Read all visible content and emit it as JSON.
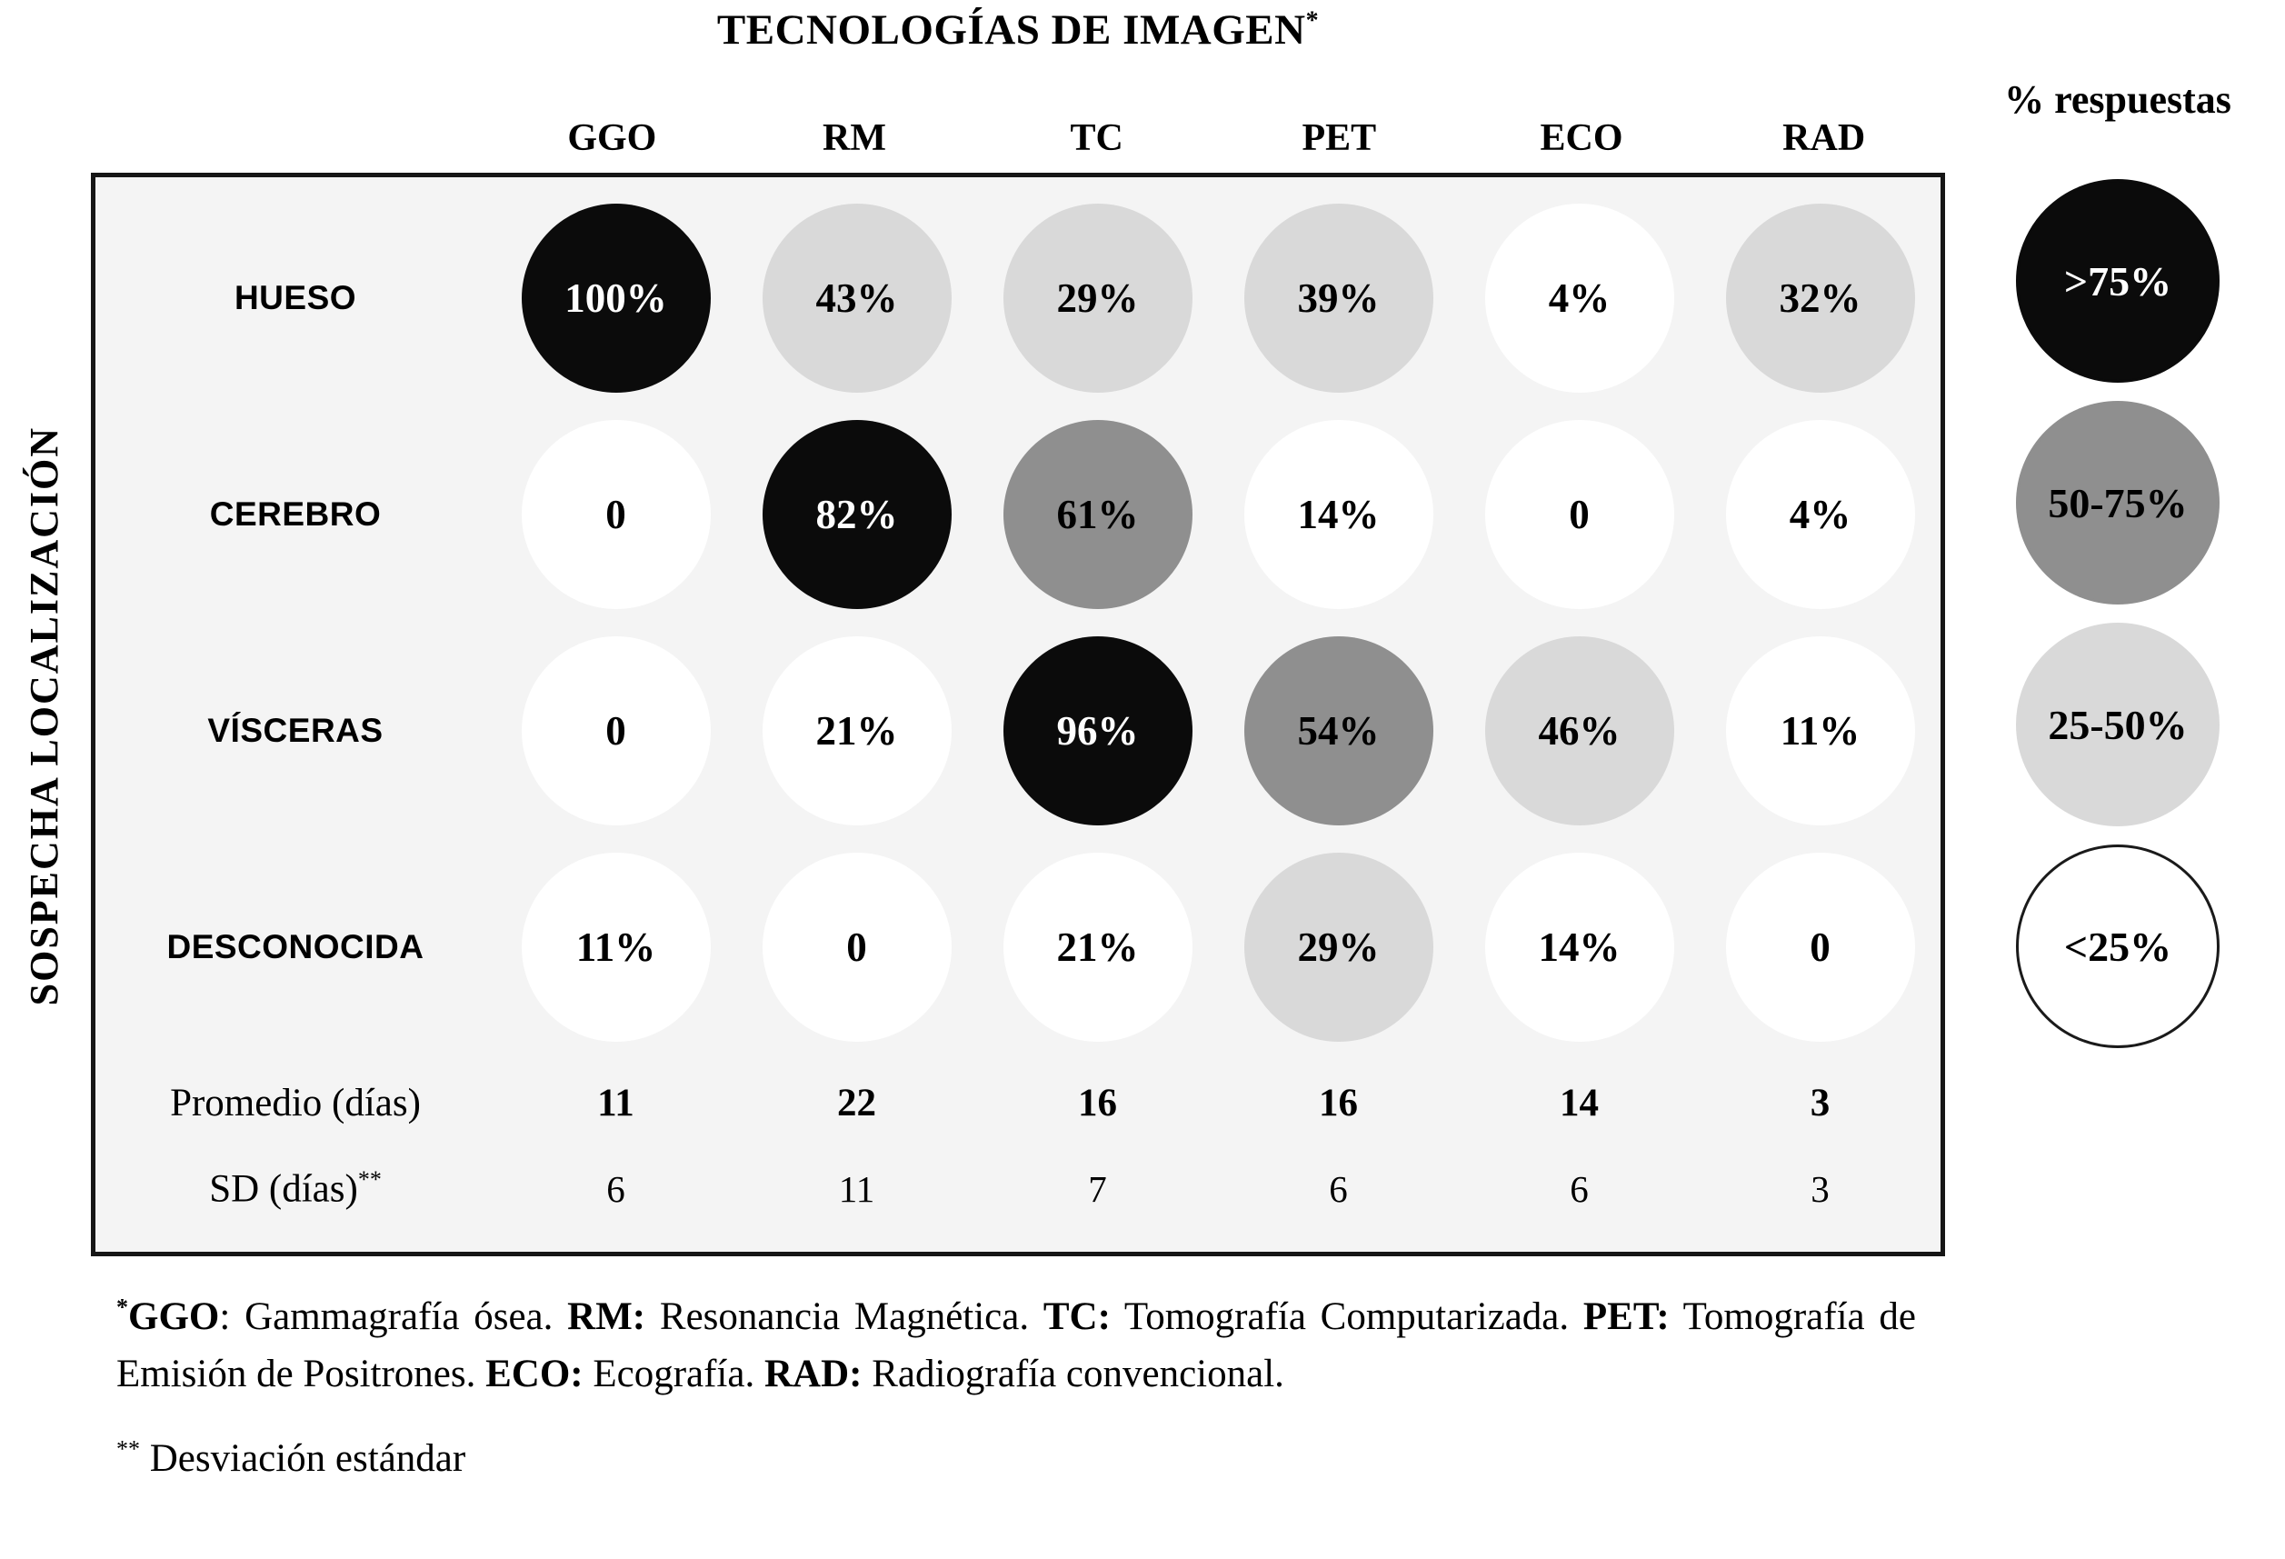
{
  "title": "TECNOLOGÍAS DE IMAGEN",
  "title_sup": "*",
  "y_axis_label": "SOSPECHA LOCALIZACIÓN",
  "legend": {
    "title": "% respuestas",
    "items": [
      {
        "label": ">75%",
        "bin": "gt75"
      },
      {
        "label": "50-75%",
        "bin": "b50_75"
      },
      {
        "label": "25-50%",
        "bin": "b25_50"
      },
      {
        "label": "<25%",
        "bin": "lt25"
      }
    ],
    "outline_color": "#1a1a1a"
  },
  "bins": {
    "gt75": {
      "range": ">75%",
      "fill": "#0b0b0b",
      "text_color": "#ffffff"
    },
    "b50_75": {
      "range": "50-75%",
      "fill": "#8f8f8f",
      "text_color": "#000000"
    },
    "b25_50": {
      "range": "25-50%",
      "fill": "#d9d9d9",
      "text_color": "#000000"
    },
    "lt25": {
      "range": "<25%",
      "fill": "#ffffff",
      "text_color": "#000000"
    }
  },
  "panel_background": "#f4f4f4",
  "border_color": "#161616",
  "chart_data": {
    "type": "heatmap",
    "title": "TECNOLOGÍAS DE IMAGEN*",
    "x_group_label": "TECNOLOGÍAS DE IMAGEN",
    "y_group_label": "SOSPECHA LOCALIZACIÓN",
    "legend_title": "% respuestas",
    "legend_bins": [
      ">75%",
      "50-75%",
      "25-50%",
      "<25%"
    ],
    "columns": [
      "GGO",
      "RM",
      "TC",
      "PET",
      "ECO",
      "RAD"
    ],
    "rows": [
      {
        "label": "HUESO",
        "cells": [
          {
            "text": "100%",
            "value": 100,
            "bin": "gt75"
          },
          {
            "text": "43%",
            "value": 43,
            "bin": "b25_50"
          },
          {
            "text": "29%",
            "value": 29,
            "bin": "b25_50"
          },
          {
            "text": "39%",
            "value": 39,
            "bin": "b25_50"
          },
          {
            "text": "4%",
            "value": 4,
            "bin": "lt25"
          },
          {
            "text": "32%",
            "value": 32,
            "bin": "b25_50"
          }
        ]
      },
      {
        "label": "CEREBRO",
        "cells": [
          {
            "text": "0",
            "value": 0,
            "bin": "lt25"
          },
          {
            "text": "82%",
            "value": 82,
            "bin": "gt75"
          },
          {
            "text": "61%",
            "value": 61,
            "bin": "b50_75"
          },
          {
            "text": "14%",
            "value": 14,
            "bin": "lt25"
          },
          {
            "text": "0",
            "value": 0,
            "bin": "lt25"
          },
          {
            "text": "4%",
            "value": 4,
            "bin": "lt25"
          }
        ]
      },
      {
        "label": "VÍSCERAS",
        "cells": [
          {
            "text": "0",
            "value": 0,
            "bin": "lt25"
          },
          {
            "text": "21%",
            "value": 21,
            "bin": "lt25"
          },
          {
            "text": "96%",
            "value": 96,
            "bin": "gt75"
          },
          {
            "text": "54%",
            "value": 54,
            "bin": "b50_75"
          },
          {
            "text": "46%",
            "value": 46,
            "bin": "b25_50"
          },
          {
            "text": "11%",
            "value": 11,
            "bin": "lt25"
          }
        ]
      },
      {
        "label": "DESCONOCIDA",
        "cells": [
          {
            "text": "11%",
            "value": 11,
            "bin": "lt25"
          },
          {
            "text": "0",
            "value": 0,
            "bin": "lt25"
          },
          {
            "text": "21%",
            "value": 21,
            "bin": "lt25"
          },
          {
            "text": "29%",
            "value": 29,
            "bin": "b25_50"
          },
          {
            "text": "14%",
            "value": 14,
            "bin": "lt25"
          },
          {
            "text": "0",
            "value": 0,
            "bin": "lt25"
          }
        ]
      }
    ],
    "summary_rows": [
      {
        "label": "Promedio (días)",
        "sup": "",
        "bold": true,
        "values": [
          "11",
          "22",
          "16",
          "16",
          "14",
          "3"
        ]
      },
      {
        "label": "SD (días)",
        "sup": "**",
        "bold": false,
        "values": [
          "6",
          "11",
          "7",
          "6",
          "6",
          "3"
        ]
      }
    ]
  },
  "footnotes": {
    "abbrev_segments": [
      {
        "text": "*",
        "bold": true,
        "sup": true
      },
      {
        "text": "GGO",
        "bold": true,
        "sup": false
      },
      {
        "text": ": Gammagrafía ósea. ",
        "bold": false,
        "sup": false
      },
      {
        "text": "RM:",
        "bold": true,
        "sup": false
      },
      {
        "text": " Resonancia Magnética. ",
        "bold": false,
        "sup": false
      },
      {
        "text": "TC:",
        "bold": true,
        "sup": false
      },
      {
        "text": " Tomografía Computarizada. ",
        "bold": false,
        "sup": false
      },
      {
        "text": "PET:",
        "bold": true,
        "sup": false
      },
      {
        "text": " Tomografía de Emisión de Positrones. ",
        "bold": false,
        "sup": false
      },
      {
        "text": "ECO:",
        "bold": true,
        "sup": false
      },
      {
        "text": " Ecografía. ",
        "bold": false,
        "sup": false
      },
      {
        "text": "RAD:",
        "bold": true,
        "sup": false
      },
      {
        "text": " Radiografía convencional.",
        "bold": false,
        "sup": false
      }
    ],
    "sd_segments": [
      {
        "text": "**",
        "bold": false,
        "sup": true
      },
      {
        "text": " Desviación estándar",
        "bold": false,
        "sup": false
      }
    ]
  }
}
